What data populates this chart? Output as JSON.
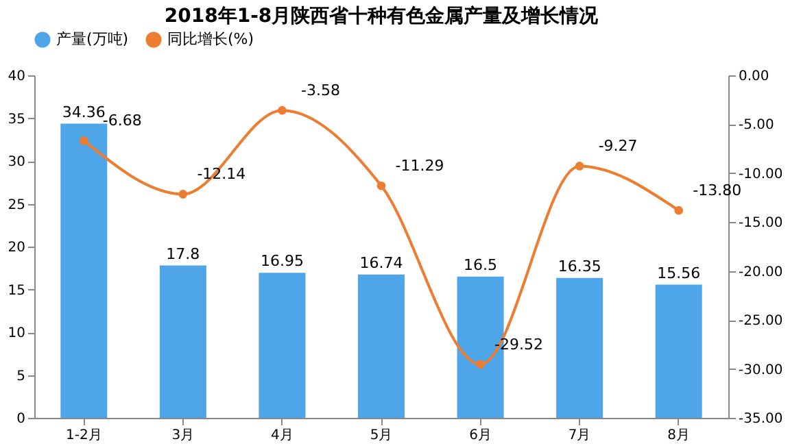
{
  "chart_data": {
    "type": "bar",
    "title": "2018年1-8月陕西省十种有色金属产量及增长情况",
    "categories": [
      "1-2月",
      "3月",
      "4月",
      "5月",
      "6月",
      "7月",
      "8月"
    ],
    "series": [
      {
        "name": "产量(万吨)",
        "color": "#4ea6e8",
        "values": [
          34.36,
          17.8,
          16.95,
          16.74,
          16.5,
          16.35,
          15.56
        ],
        "value_labels": [
          "34.36",
          "17.8",
          "16.95",
          "16.74",
          "16.5",
          "16.35",
          "15.56"
        ]
      },
      {
        "name": "同比增长(%)",
        "type": "line",
        "axis": "y2",
        "color": "#ed7d31",
        "values": [
          -6.68,
          -12.14,
          -3.58,
          -11.29,
          -29.52,
          -9.27,
          -13.8
        ],
        "value_labels": [
          "-6.68",
          "-12.14",
          "-3.58",
          "-11.29",
          "-29.52",
          "-9.27",
          "-13.80"
        ]
      }
    ],
    "ylim": [
      0,
      40
    ],
    "yticks": [
      0,
      5,
      10,
      15,
      20,
      25,
      30,
      35,
      40
    ],
    "y2lim": [
      -35,
      0
    ],
    "y2ticks": [
      {
        "value": -35,
        "label": "-35.00"
      },
      {
        "value": -30,
        "label": "-30.00"
      },
      {
        "value": -25,
        "label": "-25.00"
      },
      {
        "value": -20,
        "label": "-20.00"
      },
      {
        "value": -15,
        "label": "-15.00"
      },
      {
        "value": -10,
        "label": "-10.00"
      },
      {
        "value": -5,
        "label": "-5.00"
      },
      {
        "value": 0,
        "label": "0.00"
      }
    ],
    "legend": "top",
    "grid": false,
    "marker": "circle",
    "line_style": "solid"
  }
}
